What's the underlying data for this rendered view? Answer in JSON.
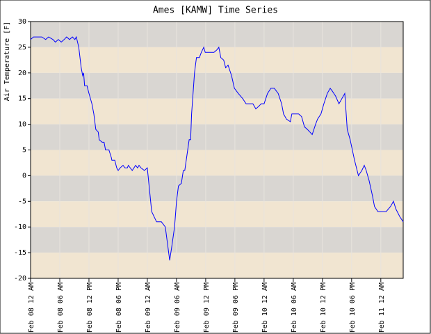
{
  "chart_data": {
    "type": "line",
    "title": "Ames [KAMW] Time Series",
    "y_label": "Air Temperature [F]",
    "x": [
      0,
      0.6,
      1.4,
      2.3,
      3.1,
      3.7,
      4.6,
      5.1,
      5.7,
      6.3,
      6.9,
      7.4,
      8,
      8.6,
      9.1,
      9.4,
      9.9,
      10.4,
      10.7,
      10.9,
      11.1,
      11.6,
      12,
      12.6,
      13,
      13.4,
      13.9,
      14.1,
      14.7,
      15.1,
      15.4,
      16.1,
      16.6,
      16.7,
      17.3,
      17.7,
      18,
      18.4,
      19,
      19.4,
      19.9,
      20.1,
      20.9,
      21.6,
      22,
      22.3,
      22.7,
      23.4,
      24,
      24.9,
      25.9,
      26.9,
      27.7,
      28.6,
      29,
      29.6,
      30,
      30.4,
      31,
      31.4,
      31.7,
      32.3,
      32.6,
      32.9,
      33.1,
      33.7,
      34.1,
      34.7,
      35.1,
      35.6,
      35.9,
      36.6,
      37.3,
      37.7,
      38.3,
      38.7,
      39.1,
      39.7,
      40.1,
      40.6,
      41.3,
      41.9,
      42.7,
      43.6,
      44.3,
      45.1,
      45.7,
      46.3,
      46.9,
      47.4,
      48,
      48.7,
      49.4,
      50.1,
      50.9,
      51.6,
      52,
      52.6,
      53.4,
      53.7,
      54.4,
      55.1,
      55.7,
      56.3,
      56.9,
      57.4,
      57.9,
      58.6,
      59,
      59.7,
      60.3,
      61,
      61.6,
      62,
      62.7,
      63.4,
      64.6,
      65.1,
      65.7,
      66.6,
      67.4,
      68.1,
      68.6,
      69,
      69.6,
      70.3,
      70.7,
      71.4,
      72.1,
      73.1,
      74,
      74.6,
      75.1,
      75.9,
      76.6
    ],
    "values": [
      26.5,
      27,
      27,
      27,
      26.5,
      27,
      26.5,
      26,
      26.5,
      26,
      26.5,
      27,
      26.5,
      27,
      26.5,
      27,
      25,
      21,
      19.5,
      20,
      17.5,
      17.5,
      16,
      14,
      12,
      9,
      8.5,
      7,
      6.5,
      6.5,
      5,
      5,
      3.5,
      3,
      3,
      1.5,
      1,
      1.5,
      2,
      1.5,
      1.5,
      2,
      1,
      2,
      1.5,
      2,
      1.5,
      1,
      1.5,
      -7,
      -9,
      -9,
      -10,
      -16.5,
      -14,
      -10,
      -5,
      -2,
      -1.5,
      1,
      1,
      5,
      7,
      7,
      12,
      20,
      23,
      23,
      24,
      25,
      24,
      24,
      24,
      24,
      24.5,
      25,
      23,
      22.5,
      21,
      21.5,
      19.5,
      17,
      16,
      15,
      14,
      14,
      14,
      13,
      13.5,
      14,
      14,
      16,
      17,
      17,
      16,
      14,
      12,
      11,
      10.5,
      12,
      12,
      12,
      11.5,
      9.5,
      9,
      8.5,
      8,
      10,
      11,
      12,
      14,
      16,
      17,
      16.5,
      15.5,
      14,
      16,
      9,
      7,
      3,
      0,
      1,
      2,
      1,
      -1,
      -4,
      -6,
      -7,
      -7,
      -7,
      -6,
      -5,
      -6.5,
      -8,
      -9
    ],
    "color": "#0000ff",
    "xlim": [
      0,
      76.6
    ],
    "xticks": [
      {
        "value": 0,
        "label": "Feb 08 12 AM"
      },
      {
        "value": 6,
        "label": "Feb 08 06 AM"
      },
      {
        "value": 12,
        "label": "Feb 08 12 PM"
      },
      {
        "value": 18,
        "label": "Feb 08 06 PM"
      },
      {
        "value": 24,
        "label": "Feb 09 12 AM"
      },
      {
        "value": 30,
        "label": "Feb 09 06 AM"
      },
      {
        "value": 36,
        "label": "Feb 09 12 PM"
      },
      {
        "value": 42,
        "label": "Feb 09 06 PM"
      },
      {
        "value": 48,
        "label": "Feb 10 12 AM"
      },
      {
        "value": 54,
        "label": "Feb 10 06 AM"
      },
      {
        "value": 60,
        "label": "Feb 10 12 PM"
      },
      {
        "value": 66,
        "label": "Feb 10 06 PM"
      },
      {
        "value": 72,
        "label": "Feb 11 12 AM"
      }
    ],
    "ylim": [
      -20,
      30
    ],
    "yticks": [
      -20,
      -15,
      -10,
      -5,
      0,
      5,
      10,
      15,
      20,
      25,
      30
    ],
    "grid": true
  }
}
